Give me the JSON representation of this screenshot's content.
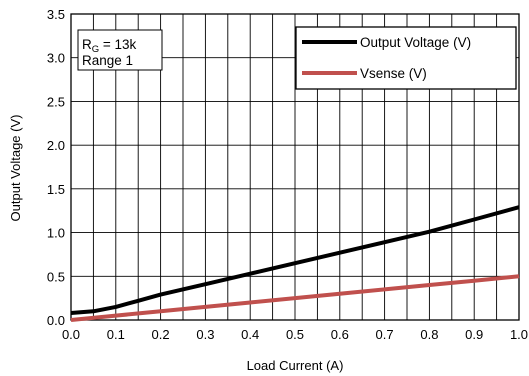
{
  "chart_data": {
    "type": "line",
    "xlabel": "Load Current (A)",
    "ylabel": "Output Voltage (V)",
    "xlim": [
      0.0,
      1.0
    ],
    "ylim": [
      0.0,
      3.5
    ],
    "x_ticks": [
      "0.0",
      "0.1",
      "0.2",
      "0.3",
      "0.4",
      "0.5",
      "0.6",
      "0.7",
      "0.8",
      "0.9",
      "1.0"
    ],
    "y_ticks": [
      "0.0",
      "0.5",
      "1.0",
      "1.5",
      "2.0",
      "2.5",
      "3.0",
      "3.5"
    ],
    "grid": true,
    "legend_position": "top-right",
    "annotation": {
      "line1_main": "R",
      "line1_sub": "G",
      "line1_rest": " = 13k",
      "line2": "Range 1"
    },
    "series": [
      {
        "name": "Output Voltage (V)",
        "color": "#000000",
        "x": [
          0.0,
          0.05,
          0.1,
          0.15,
          0.2,
          0.3,
          0.4,
          0.5,
          0.6,
          0.7,
          0.8,
          0.9,
          1.0
        ],
        "y": [
          0.08,
          0.1,
          0.15,
          0.22,
          0.29,
          0.41,
          0.53,
          0.65,
          0.77,
          0.89,
          1.01,
          1.15,
          1.29
        ]
      },
      {
        "name": "Vsense (V)",
        "color": "#c0504d",
        "x": [
          0.0,
          0.1,
          0.2,
          0.3,
          0.4,
          0.5,
          0.6,
          0.7,
          0.8,
          0.9,
          1.0
        ],
        "y": [
          0.0,
          0.05,
          0.1,
          0.15,
          0.2,
          0.25,
          0.3,
          0.35,
          0.4,
          0.45,
          0.5
        ]
      }
    ]
  }
}
